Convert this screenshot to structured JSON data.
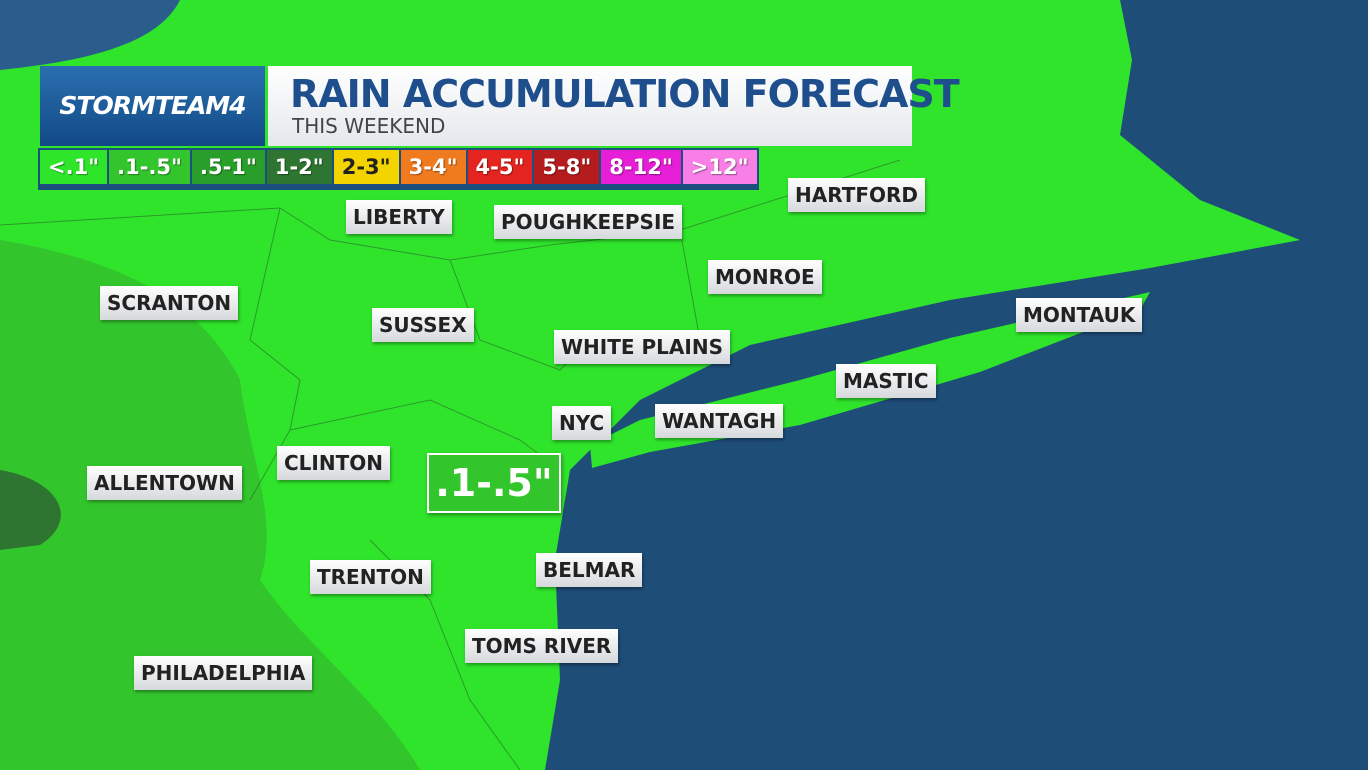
{
  "brand": "STORMTEAM4",
  "title": "RAIN ACCUMULATION FORECAST",
  "subtitle": "THIS WEEKEND",
  "legend": [
    {
      "label": "<.1\"",
      "color": "#2ee52a"
    },
    {
      "label": ".1-.5\"",
      "color": "#33c52c"
    },
    {
      "label": ".5-1\"",
      "color": "#2a9e2a"
    },
    {
      "label": "1-2\"",
      "color": "#2d7530"
    },
    {
      "label": "2-3\"",
      "color": "#f4d400"
    },
    {
      "label": "3-4\"",
      "color": "#f07a1e"
    },
    {
      "label": "4-5\"",
      "color": "#e4241f"
    },
    {
      "label": "5-8\"",
      "color": "#b51c1e"
    },
    {
      "label": "8-12\"",
      "color": "#e61ed6"
    },
    {
      "label": ">12\"",
      "color": "#f77fe6"
    }
  ],
  "cities": [
    "LIBERTY",
    "POUGHKEEPSIE",
    "HARTFORD",
    "SCRANTON",
    "MONROE",
    "SUSSEX",
    "WHITE PLAINS",
    "MONTAUK",
    "MASTIC",
    "NYC",
    "WANTAGH",
    "CLINTON",
    "ALLENTOWN",
    "TRENTON",
    "BELMAR",
    "TOMS RIVER",
    "PHILADELPHIA"
  ],
  "amount_label": ".1-.5\""
}
